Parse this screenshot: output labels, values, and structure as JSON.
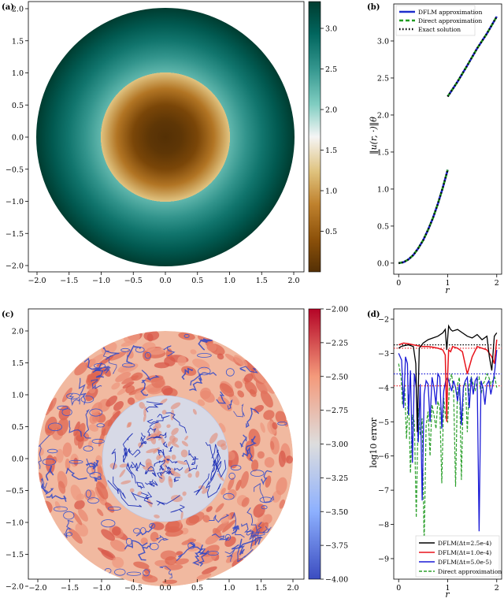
{
  "colors": {
    "brown_dark": "#543005",
    "brown_mid": "#bf812d",
    "cream": "#f5f5f5",
    "teal_mid": "#35978f",
    "teal_dark": "#003c30",
    "cool_blue": "#3b4cc0",
    "cool_red": "#b40426",
    "dflm": "#1f2ecc",
    "direct": "#1e9a1e",
    "exact": "#000000",
    "err_black": "#000000",
    "err_red": "#e8141c",
    "err_blue": "#1a1ad6",
    "err_green": "#2ca02c"
  },
  "chart_data": [
    {
      "panel": "(a)",
      "type": "heatmap",
      "field": "radial two-region function on disk of radius 2, inner radius 1",
      "xlim": [
        -2.2,
        2.2
      ],
      "ylim": [
        -2.2,
        2.2
      ],
      "xticks": [
        "−2.0",
        "−1.5",
        "−1.0",
        "−0.5",
        "0.0",
        "0.5",
        "1.0",
        "1.5",
        "2.0"
      ],
      "yticks": [
        "2.0",
        "1.5",
        "1.0",
        "0.5",
        "0.0",
        "−0.5",
        "−1.0",
        "−1.5",
        "−2.0"
      ],
      "colorbar": {
        "vmin": 0.0,
        "vmax": 3.33,
        "ticks": [
          "3.0",
          "2.5",
          "2.0",
          "1.5",
          "1.0",
          "0.5"
        ]
      },
      "radial_profile": {
        "r": [
          0,
          0.5,
          1.0,
          1.0,
          1.5,
          2.0
        ],
        "value": [
          0.0,
          0.27,
          1.25,
          2.25,
          2.8,
          3.33
        ]
      }
    },
    {
      "panel": "(b)",
      "type": "line",
      "xlabel": "r",
      "ylabel": "‖u(r, ·)‖θ",
      "xlim": [
        -0.1,
        2.1
      ],
      "ylim": [
        -0.15,
        3.5
      ],
      "xticks": [
        "0",
        "1",
        "2"
      ],
      "yticks": [
        "0.0",
        "0.5",
        "1.0",
        "1.5",
        "2.0",
        "2.5",
        "3.0"
      ],
      "legend": [
        "DFLM approximation",
        "Direct approximation",
        "Exact solution"
      ],
      "series": [
        {
          "name": "DFLM approximation",
          "segments": [
            {
              "x": [
                0,
                0.1,
                0.2,
                0.3,
                0.4,
                0.5,
                0.6,
                0.7,
                0.8,
                0.9,
                1.0
              ],
              "y": [
                0.0,
                0.012,
                0.05,
                0.11,
                0.2,
                0.31,
                0.45,
                0.61,
                0.8,
                1.02,
                1.26
              ]
            },
            {
              "x": [
                1.0,
                1.2,
                1.4,
                1.6,
                1.8,
                2.0
              ],
              "y": [
                2.25,
                2.45,
                2.67,
                2.9,
                3.1,
                3.33
              ]
            }
          ]
        },
        {
          "name": "Direct approximation",
          "segments": [
            {
              "x": [
                0,
                0.1,
                0.2,
                0.3,
                0.4,
                0.5,
                0.6,
                0.7,
                0.8,
                0.9,
                1.0
              ],
              "y": [
                0.0,
                0.012,
                0.05,
                0.11,
                0.2,
                0.31,
                0.45,
                0.61,
                0.8,
                1.02,
                1.26
              ]
            },
            {
              "x": [
                1.0,
                1.2,
                1.4,
                1.6,
                1.8,
                2.0
              ],
              "y": [
                2.25,
                2.45,
                2.67,
                2.9,
                3.1,
                3.33
              ]
            }
          ]
        },
        {
          "name": "Exact solution",
          "segments": [
            {
              "x": [
                0,
                0.1,
                0.2,
                0.3,
                0.4,
                0.5,
                0.6,
                0.7,
                0.8,
                0.9,
                1.0
              ],
              "y": [
                0.0,
                0.012,
                0.05,
                0.11,
                0.2,
                0.31,
                0.45,
                0.61,
                0.8,
                1.02,
                1.26
              ]
            },
            {
              "x": [
                1.0,
                1.2,
                1.4,
                1.6,
                1.8,
                2.0
              ],
              "y": [
                2.25,
                2.45,
                2.67,
                2.9,
                3.1,
                3.33
              ]
            }
          ]
        }
      ]
    },
    {
      "panel": "(c)",
      "type": "heatmap",
      "field": "log10 pointwise error of DFLM solution on disk",
      "xlim": [
        -2.2,
        2.2
      ],
      "ylim": [
        -2.2,
        2.2
      ],
      "xticks": [
        "−2.0",
        "−1.5",
        "−1.0",
        "−0.5",
        "0.0",
        "0.5",
        "1.0",
        "1.5",
        "2.0"
      ],
      "yticks": [
        "2.0",
        "1.5",
        "1.0",
        "0.5",
        "0.0",
        "−0.5",
        "−1.0",
        "−1.5",
        "−2.0"
      ],
      "colorbar": {
        "vmin": -4.0,
        "vmax": -2.0,
        "ticks": [
          "−2.00",
          "−2.25",
          "−2.50",
          "−2.75",
          "−3.00",
          "−3.25",
          "−3.50",
          "−3.75",
          "−4.00"
        ]
      }
    },
    {
      "panel": "(d)",
      "type": "line",
      "xlabel": "r",
      "ylabel": "log10 error",
      "xlim": [
        -0.1,
        2.1
      ],
      "ylim": [
        -9.6,
        -1.7
      ],
      "xticks": [
        "0",
        "1",
        "2"
      ],
      "yticks": [
        "−2",
        "−3",
        "−4",
        "−5",
        "−6",
        "−7",
        "−8",
        "−9"
      ],
      "legend": [
        "DFLM(Δt=2.5e-4)",
        "DFLM(Δt=1.0e-4)",
        "DFLM(Δt=5.0e-5)",
        "Direct approximation"
      ],
      "reference_levels": [
        {
          "series": "DFLM(Δt=2.5e-4)",
          "y": -2.75
        },
        {
          "series": "DFLM(Δt=1.0e-4)",
          "y": -2.85
        },
        {
          "series": "DFLM(Δt=5.0e-5)",
          "y": -3.6
        },
        {
          "series": "DFLM(Δt=1.0e-4)",
          "y": -3.95
        }
      ],
      "series": [
        {
          "name": "DFLM(Δt=2.5e-4)",
          "x": [
            0.0,
            0.05,
            0.1,
            0.2,
            0.3,
            0.35,
            0.38,
            0.42,
            0.5,
            0.6,
            0.7,
            0.8,
            0.9,
            0.95,
            0.98,
            1.02,
            1.06,
            1.1,
            1.2,
            1.3,
            1.4,
            1.5,
            1.6,
            1.7,
            1.8,
            1.85,
            1.9,
            1.95,
            2.0
          ],
          "y": [
            -2.85,
            -2.8,
            -2.78,
            -2.75,
            -2.8,
            -3.3,
            -5.3,
            -2.85,
            -2.7,
            -2.6,
            -2.55,
            -2.5,
            -2.4,
            -2.3,
            -2.9,
            -2.2,
            -2.3,
            -2.35,
            -2.3,
            -2.4,
            -2.5,
            -2.55,
            -2.45,
            -2.6,
            -2.5,
            -3.1,
            -3.5,
            -2.5,
            -2.4
          ]
        },
        {
          "name": "DFLM(Δt=1.0e-4)",
          "x": [
            0.0,
            0.1,
            0.2,
            0.3,
            0.4,
            0.5,
            0.6,
            0.7,
            0.8,
            0.9,
            0.95,
            0.98,
            1.0,
            1.02,
            1.06,
            1.1,
            1.2,
            1.3,
            1.4,
            1.5,
            1.6,
            1.7,
            1.8,
            1.85,
            1.9,
            1.95,
            2.0
          ],
          "y": [
            -2.75,
            -2.7,
            -2.72,
            -2.75,
            -2.78,
            -2.8,
            -2.8,
            -2.82,
            -2.85,
            -2.9,
            -3.05,
            -5.0,
            -3.6,
            -2.9,
            -2.95,
            -2.8,
            -2.85,
            -2.95,
            -3.6,
            -3.1,
            -2.8,
            -2.85,
            -2.9,
            -3.0,
            -3.1,
            -3.3,
            -2.6
          ]
        },
        {
          "name": "DFLM(Δt=5.0e-5)",
          "x": [
            0.0,
            0.06,
            0.1,
            0.14,
            0.18,
            0.2,
            0.24,
            0.28,
            0.32,
            0.36,
            0.4,
            0.44,
            0.48,
            0.52,
            0.56,
            0.6,
            0.64,
            0.68,
            0.72,
            0.76,
            0.8,
            0.84,
            0.88,
            0.92,
            0.96,
            1.0,
            1.04,
            1.08,
            1.12,
            1.16,
            1.2,
            1.24,
            1.28,
            1.32,
            1.36,
            1.4,
            1.44,
            1.48,
            1.52,
            1.56,
            1.6,
            1.64,
            1.68,
            1.72,
            1.76,
            1.8,
            1.84,
            1.88,
            1.92,
            1.96,
            2.0
          ],
          "y": [
            -3.0,
            -3.2,
            -4.6,
            -3.1,
            -3.3,
            -4.8,
            -3.5,
            -6.2,
            -3.6,
            -4.0,
            -5.6,
            -3.9,
            -7.3,
            -4.2,
            -3.8,
            -3.9,
            -5.0,
            -3.7,
            -4.0,
            -4.5,
            -3.6,
            -3.7,
            -5.2,
            -4.1,
            -3.8,
            -3.7,
            -3.9,
            -4.1,
            -3.8,
            -4.0,
            -4.4,
            -3.9,
            -5.1,
            -4.0,
            -3.8,
            -3.7,
            -4.6,
            -3.7,
            -4.2,
            -3.8,
            -3.7,
            -8.2,
            -3.8,
            -4.0,
            -4.5,
            -3.9,
            -3.8,
            -4.2,
            -3.9,
            -3.5,
            -2.9
          ]
        },
        {
          "name": "Direct approximation",
          "x": [
            0.0,
            0.05,
            0.08,
            0.12,
            0.16,
            0.2,
            0.24,
            0.28,
            0.32,
            0.36,
            0.4,
            0.44,
            0.48,
            0.52,
            0.56,
            0.6,
            0.64,
            0.68,
            0.72,
            0.76,
            0.8,
            0.84,
            0.88,
            0.92,
            0.96,
            1.0,
            1.04,
            1.08,
            1.12,
            1.16,
            1.2,
            1.24,
            1.28,
            1.32,
            1.36,
            1.4,
            1.44,
            1.48,
            1.52,
            1.56,
            1.6,
            1.64,
            1.68,
            1.72,
            1.76,
            1.8,
            1.84,
            1.88,
            1.92,
            1.96,
            2.0
          ],
          "y": [
            -3.3,
            -3.7,
            -4.5,
            -3.9,
            -5.5,
            -4.2,
            -6.5,
            -4.8,
            -5.0,
            -7.8,
            -4.6,
            -5.4,
            -4.9,
            -8.6,
            -5.1,
            -4.7,
            -6.0,
            -4.5,
            -4.8,
            -5.2,
            -4.4,
            -4.6,
            -6.8,
            -4.3,
            -4.9,
            -5.0,
            -3.8,
            -3.6,
            -4.1,
            -6.9,
            -3.9,
            -3.7,
            -6.7,
            -4.0,
            -3.8,
            -5.3,
            -3.9,
            -3.7,
            -3.9,
            -4.1,
            -3.8,
            -3.7,
            -4.2,
            -3.9,
            -3.8,
            -3.6,
            -3.7,
            -3.9,
            -3.8,
            -3.7,
            -4.0
          ]
        }
      ]
    }
  ]
}
